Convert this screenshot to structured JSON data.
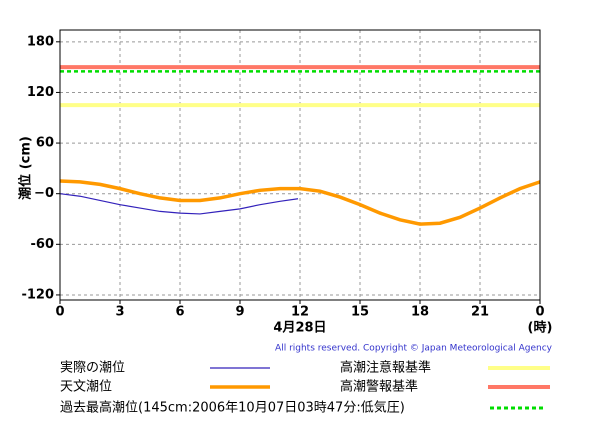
{
  "chart_data": {
    "type": "line",
    "ylabel": "潮位 (cm)",
    "xlabel": "4月28日",
    "xunit": "(時)",
    "copyright": "All rights reserved. Copyright © Japan Meteorological Agency",
    "xlim": [
      0,
      24
    ],
    "xticks": [
      0,
      3,
      6,
      9,
      12,
      15,
      18,
      21,
      {
        "value": 24,
        "label": "0"
      }
    ],
    "ylim": [
      -126,
      194
    ],
    "yticks": [
      180,
      120,
      60,
      {
        "value": 0,
        "label": "−0"
      },
      -60,
      -120
    ],
    "grid": true,
    "series": [
      {
        "name": "実際の潮位",
        "color": "#3322bb",
        "width": 1.2,
        "x": [
          0,
          1,
          2,
          3,
          4,
          5,
          6,
          7,
          8,
          9,
          10,
          11,
          11.9
        ],
        "values": [
          0,
          -3,
          -8,
          -13,
          -17,
          -21,
          -23,
          -24,
          -21,
          -18,
          -13,
          -9,
          -6
        ]
      },
      {
        "name": "天文潮位",
        "color": "#ff9900",
        "width": 3.5,
        "x": [
          0,
          1,
          2,
          3,
          4,
          5,
          6,
          7,
          8,
          9,
          10,
          11,
          12,
          13,
          14,
          15,
          16,
          17,
          18,
          19,
          20,
          21,
          22,
          23,
          24
        ],
        "values": [
          15,
          14,
          11,
          6,
          0,
          -5,
          -8,
          -8,
          -5,
          0,
          4,
          6,
          6,
          3,
          -4,
          -13,
          -23,
          -31,
          -36,
          -35,
          -28,
          -17,
          -5,
          6,
          14
        ]
      }
    ],
    "reference_lines": [
      {
        "name": "高潮注意報基準",
        "color": "#ffff88",
        "value": 105,
        "dash": false
      },
      {
        "name": "高潮警報基準",
        "color": "#ff7766",
        "value": 150,
        "dash": false
      },
      {
        "name": "過去最高潮位(145cm:2006年10月07日03時47分:低気圧)",
        "color": "#00dd00",
        "value": 145,
        "dash": true
      }
    ]
  }
}
